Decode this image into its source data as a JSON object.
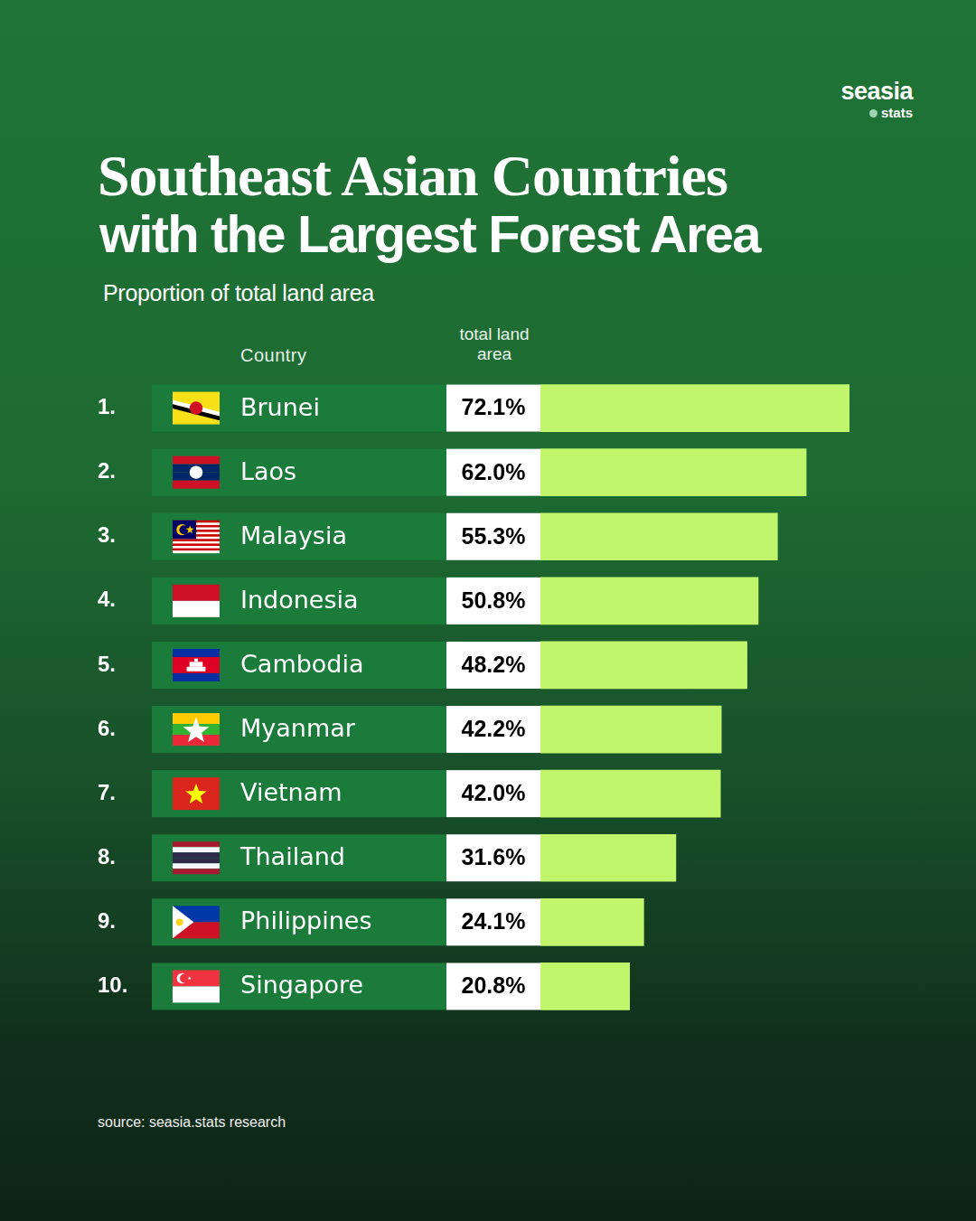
{
  "chart_data": {
    "type": "bar",
    "orientation": "horizontal",
    "title": [
      "Southeast Asian Countries",
      "with the Largest Forest Area"
    ],
    "subtitle": "Proportion of total land area",
    "column_headers": [
      "Country",
      "total land area"
    ],
    "ranks": [
      "1.",
      "2.",
      "3.",
      "4.",
      "5.",
      "6.",
      "7.",
      "8.",
      "9.",
      "10."
    ],
    "categories": [
      "Brunei",
      "Laos",
      "Malaysia",
      "Indonesia",
      "Cambodia",
      "Myanmar",
      "Vietnam",
      "Thailand",
      "Philippines",
      "Singapore"
    ],
    "values": [
      72.1,
      62.0,
      55.3,
      50.8,
      48.2,
      42.2,
      42.0,
      31.6,
      24.1,
      20.8
    ],
    "value_labels": [
      "72.1%",
      "62.0%",
      "55.3%",
      "50.8%",
      "48.2%",
      "42.2%",
      "42.0%",
      "31.6%",
      "24.1%",
      "20.8%"
    ],
    "color": "#c1f56c",
    "xlim": [
      0,
      72.1
    ],
    "grid": false,
    "data_labels": true,
    "tick_labels": "y",
    "brand": {
      "name": "seasia",
      "sub": "stats"
    },
    "source": "source: seasia.stats research"
  }
}
